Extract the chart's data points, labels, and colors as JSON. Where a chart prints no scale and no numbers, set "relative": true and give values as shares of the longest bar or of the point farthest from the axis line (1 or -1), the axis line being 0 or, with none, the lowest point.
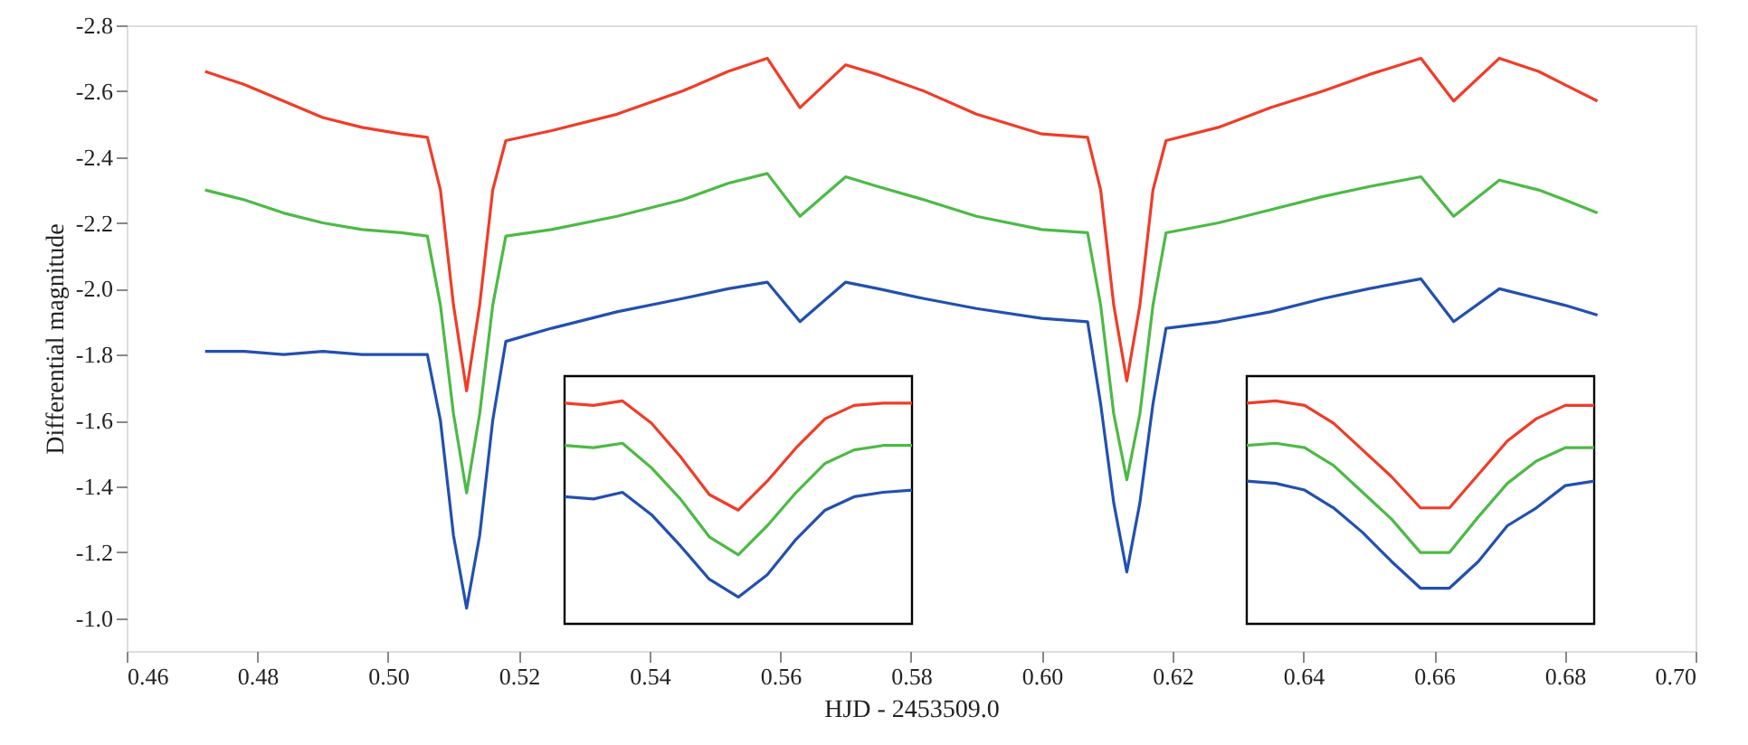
{
  "chart_data": [
    {
      "type": "line",
      "xlabel": "HJD - 2453509.0",
      "ylabel": "Differential magnitude",
      "xlim": [
        0.46,
        0.7
      ],
      "xticks": [
        {
          "value": 0.46,
          "label": "0.46"
        },
        {
          "value": 0.48,
          "label": "0.48"
        },
        {
          "value": 0.5,
          "label": "0.50"
        },
        {
          "value": 0.52,
          "label": "0.52"
        },
        {
          "value": 0.54,
          "label": "0.54"
        },
        {
          "value": 0.56,
          "label": "0.56"
        },
        {
          "value": 0.58,
          "label": "0.58"
        },
        {
          "value": 0.6,
          "label": "0.60"
        },
        {
          "value": 0.62,
          "label": "0.62"
        },
        {
          "value": 0.64,
          "label": "0.64"
        },
        {
          "value": 0.66,
          "label": "0.66"
        },
        {
          "value": 0.68,
          "label": "0.68"
        },
        {
          "value": 0.7,
          "label": "0.70"
        }
      ],
      "ylim": [
        -0.9,
        -2.8
      ],
      "yticks": [
        {
          "value": -2.8,
          "label": "-2.8"
        },
        {
          "value": -2.6,
          "label": "-2.6"
        },
        {
          "value": -2.4,
          "label": "-2.4"
        },
        {
          "value": -2.2,
          "label": "-2.2"
        },
        {
          "value": -2.0,
          "label": "-2.0"
        },
        {
          "value": -1.8,
          "label": "-1.8"
        },
        {
          "value": -1.6,
          "label": "-1.6"
        },
        {
          "value": -1.4,
          "label": "-1.4"
        },
        {
          "value": -1.2,
          "label": "-1.2"
        },
        {
          "value": -1.0,
          "label": "-1.0"
        }
      ],
      "grid": false,
      "marker": "none",
      "line_style": "solid",
      "series": [
        {
          "color": "#f03c28",
          "x": [
            0.472,
            0.478,
            0.484,
            0.49,
            0.496,
            0.502,
            0.506,
            0.508,
            0.51,
            0.512,
            0.514,
            0.516,
            0.518,
            0.525,
            0.535,
            0.545,
            0.552,
            0.558,
            0.563,
            0.57,
            0.575,
            0.582,
            0.59,
            0.6,
            0.607,
            0.609,
            0.611,
            0.613,
            0.615,
            0.617,
            0.619,
            0.627,
            0.635,
            0.643,
            0.65,
            0.658,
            0.663,
            0.67,
            0.676,
            0.68,
            0.685
          ],
          "values": [
            -2.66,
            -2.62,
            -2.57,
            -2.52,
            -2.49,
            -2.47,
            -2.46,
            -2.3,
            -1.95,
            -1.69,
            -1.95,
            -2.3,
            -2.45,
            -2.48,
            -2.53,
            -2.6,
            -2.66,
            -2.7,
            -2.55,
            -2.68,
            -2.65,
            -2.6,
            -2.53,
            -2.47,
            -2.46,
            -2.3,
            -1.95,
            -1.72,
            -1.95,
            -2.3,
            -2.45,
            -2.49,
            -2.55,
            -2.6,
            -2.65,
            -2.7,
            -2.57,
            -2.7,
            -2.66,
            -2.62,
            -2.57
          ]
        },
        {
          "color": "#4cba45",
          "x": [
            0.472,
            0.478,
            0.484,
            0.49,
            0.496,
            0.502,
            0.506,
            0.508,
            0.51,
            0.512,
            0.514,
            0.516,
            0.518,
            0.525,
            0.535,
            0.545,
            0.552,
            0.558,
            0.563,
            0.57,
            0.575,
            0.582,
            0.59,
            0.6,
            0.607,
            0.609,
            0.611,
            0.613,
            0.615,
            0.617,
            0.619,
            0.627,
            0.635,
            0.643,
            0.65,
            0.658,
            0.663,
            0.67,
            0.676,
            0.68,
            0.685
          ],
          "values": [
            -2.3,
            -2.27,
            -2.23,
            -2.2,
            -2.18,
            -2.17,
            -2.16,
            -1.95,
            -1.62,
            -1.38,
            -1.62,
            -1.95,
            -2.16,
            -2.18,
            -2.22,
            -2.27,
            -2.32,
            -2.35,
            -2.22,
            -2.34,
            -2.31,
            -2.27,
            -2.22,
            -2.18,
            -2.17,
            -1.95,
            -1.62,
            -1.42,
            -1.62,
            -1.95,
            -2.17,
            -2.2,
            -2.24,
            -2.28,
            -2.31,
            -2.34,
            -2.22,
            -2.33,
            -2.3,
            -2.27,
            -2.23
          ]
        },
        {
          "color": "#2250b0",
          "x": [
            0.472,
            0.478,
            0.484,
            0.49,
            0.496,
            0.502,
            0.506,
            0.508,
            0.51,
            0.512,
            0.514,
            0.516,
            0.518,
            0.525,
            0.535,
            0.545,
            0.552,
            0.558,
            0.563,
            0.57,
            0.575,
            0.582,
            0.59,
            0.6,
            0.607,
            0.609,
            0.611,
            0.613,
            0.615,
            0.617,
            0.619,
            0.627,
            0.635,
            0.643,
            0.65,
            0.658,
            0.663,
            0.67,
            0.676,
            0.68,
            0.685
          ],
          "values": [
            -1.81,
            -1.81,
            -1.8,
            -1.81,
            -1.8,
            -1.8,
            -1.8,
            -1.6,
            -1.25,
            -1.03,
            -1.25,
            -1.6,
            -1.84,
            -1.88,
            -1.93,
            -1.97,
            -2.0,
            -2.02,
            -1.9,
            -2.02,
            -2.0,
            -1.97,
            -1.94,
            -1.91,
            -1.9,
            -1.65,
            -1.35,
            -1.14,
            -1.35,
            -1.65,
            -1.88,
            -1.9,
            -1.93,
            -1.97,
            -2.0,
            -2.03,
            -1.9,
            -2.0,
            -1.97,
            -1.95,
            -1.92
          ]
        }
      ]
    },
    {
      "type": "line",
      "relative": true,
      "marker": "none",
      "line_style": "solid",
      "categories": [
        null,
        null,
        null,
        null,
        null,
        null,
        null,
        null,
        null,
        null,
        null,
        null,
        null
      ],
      "series": [
        {
          "color": "#f03c28",
          "values": [
            0.99,
            0.98,
            1.0,
            0.9,
            0.75,
            0.58,
            0.51,
            0.64,
            0.79,
            0.92,
            0.98,
            0.99,
            0.99
          ]
        },
        {
          "color": "#4cba45",
          "values": [
            0.8,
            0.79,
            0.81,
            0.7,
            0.56,
            0.39,
            0.31,
            0.44,
            0.59,
            0.72,
            0.78,
            0.8,
            0.8
          ]
        },
        {
          "color": "#2250b0",
          "values": [
            0.57,
            0.56,
            0.59,
            0.49,
            0.35,
            0.2,
            0.12,
            0.22,
            0.38,
            0.51,
            0.57,
            0.59,
            0.6
          ]
        }
      ]
    },
    {
      "type": "line",
      "relative": true,
      "marker": "none",
      "line_style": "solid",
      "categories": [
        null,
        null,
        null,
        null,
        null,
        null,
        null,
        null,
        null,
        null,
        null,
        null,
        null
      ],
      "series": [
        {
          "color": "#f03c28",
          "values": [
            0.99,
            1.0,
            0.98,
            0.9,
            0.78,
            0.66,
            0.52,
            0.52,
            0.67,
            0.82,
            0.92,
            0.98,
            0.98
          ]
        },
        {
          "color": "#4cba45",
          "values": [
            0.8,
            0.81,
            0.79,
            0.71,
            0.59,
            0.47,
            0.32,
            0.32,
            0.48,
            0.63,
            0.73,
            0.79,
            0.79
          ]
        },
        {
          "color": "#2250b0",
          "values": [
            0.64,
            0.63,
            0.6,
            0.52,
            0.41,
            0.28,
            0.16,
            0.16,
            0.28,
            0.44,
            0.52,
            0.62,
            0.64
          ]
        }
      ]
    }
  ]
}
